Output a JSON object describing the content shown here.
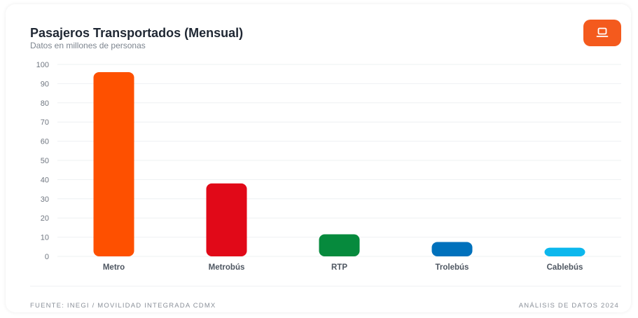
{
  "header": {
    "title": "Pasajeros Transportados (Mensual)",
    "subtitle": "Datos en millones de personas",
    "export_icon": "laptop-icon",
    "accent_color": "#f45a1d"
  },
  "footer": {
    "source": "FUENTE: INEGI / MOVILIDAD INTEGRADA CDMX",
    "note": "ANÁLISIS DE DATOS 2024"
  },
  "chart_data": {
    "type": "bar",
    "title": "Pasajeros Transportados (Mensual)",
    "subtitle": "Datos en millones de personas",
    "xlabel": "",
    "ylabel": "",
    "categories": [
      "Metro",
      "Metrobús",
      "RTP",
      "Trolebús",
      "Cablebús"
    ],
    "values": [
      96,
      38,
      11.5,
      7.5,
      4.5
    ],
    "colors": [
      "#fe5000",
      "#e10918",
      "#068a3d",
      "#0071bc",
      "#0cb7ed"
    ],
    "ylim": [
      0,
      100
    ],
    "yticks": [
      0,
      10,
      20,
      30,
      40,
      50,
      60,
      70,
      80,
      90,
      100
    ],
    "grid": true,
    "legend": "none"
  }
}
